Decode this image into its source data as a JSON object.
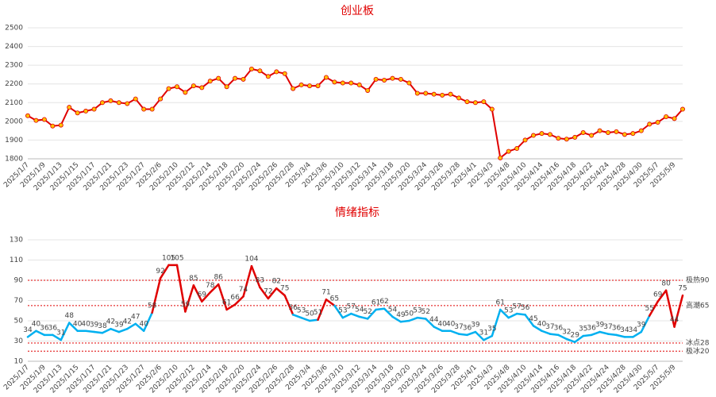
{
  "chart_data": [
    {
      "type": "line",
      "title": "创业板",
      "categories": [
        "2025/1/7",
        null,
        "2025/1/9",
        null,
        "2025/1/13",
        null,
        "2025/1/15",
        null,
        "2025/1/17",
        null,
        "2025/1/21",
        null,
        "2025/1/23",
        null,
        "2025/1/27",
        null,
        "2025/2/6",
        null,
        "2025/2/10",
        null,
        "2025/2/12",
        null,
        "2025/2/14",
        null,
        "2025/2/18",
        null,
        "2025/2/20",
        null,
        "2025/2/24",
        null,
        "2025/2/26",
        null,
        "2025/2/28",
        null,
        "2025/3/4",
        null,
        "2025/3/6",
        null,
        "2025/3/10",
        null,
        "2025/3/12",
        null,
        "2025/3/14",
        null,
        "2025/3/18",
        null,
        "2025/3/20",
        null,
        "2025/3/24",
        null,
        "2025/3/26",
        null,
        "2025/3/28",
        null,
        "2025/4/1",
        null,
        "2025/4/3",
        null,
        "2025/4/8",
        null,
        "2025/4/10",
        null,
        "2025/4/14",
        null,
        "2025/4/16",
        null,
        "2025/4/18",
        null,
        "2025/4/22",
        null,
        "2025/4/24",
        null,
        "2025/4/28",
        null,
        "2025/4/30",
        null,
        "2025/5/7",
        null,
        "2025/5/9",
        null
      ],
      "values": [
        2030,
        2005,
        2010,
        1975,
        1980,
        2075,
        2045,
        2055,
        2065,
        2100,
        2110,
        2100,
        2095,
        2120,
        2065,
        2065,
        2120,
        2175,
        2185,
        2155,
        2190,
        2180,
        2215,
        2230,
        2185,
        2230,
        2225,
        2280,
        2270,
        2240,
        2265,
        2255,
        2175,
        2195,
        2190,
        2190,
        2235,
        2210,
        2205,
        2205,
        2195,
        2165,
        2225,
        2220,
        2230,
        2225,
        2205,
        2150,
        2150,
        2145,
        2140,
        2145,
        2125,
        2105,
        2100,
        2105,
        2065,
        1805,
        1840,
        1855,
        1900,
        1925,
        1935,
        1930,
        1910,
        1905,
        1915,
        1940,
        1925,
        1950,
        1940,
        1945,
        1930,
        1935,
        1950,
        1985,
        1995,
        2025,
        2015,
        2065
      ],
      "color": "#e00000",
      "marker_color": "#ffc000",
      "ylim": [
        1800,
        2500
      ],
      "yticks": [
        1800,
        1900,
        2000,
        2100,
        2200,
        2300,
        2400,
        2500
      ],
      "grid": true
    },
    {
      "type": "line",
      "title": "情绪指标",
      "categories": [
        "2025/1/7",
        null,
        "2025/1/9",
        null,
        "2025/1/13",
        null,
        "2025/1/15",
        null,
        "2025/1/17",
        null,
        "2025/1/21",
        null,
        "2025/1/23",
        null,
        "2025/1/27",
        null,
        "2025/2/6",
        null,
        "2025/2/10",
        null,
        "2025/2/12",
        null,
        "2025/2/14",
        null,
        "2025/2/18",
        null,
        "2025/2/20",
        null,
        "2025/2/24",
        null,
        "2025/2/26",
        null,
        "2025/2/28",
        null,
        "2025/3/4",
        null,
        "2025/3/6",
        null,
        "2025/3/10",
        null,
        "2025/3/12",
        null,
        "2025/3/14",
        null,
        "2025/3/18",
        null,
        "2025/3/20",
        null,
        "2025/3/24",
        null,
        "2025/3/26",
        null,
        "2025/3/28",
        null,
        "2025/4/1",
        null,
        "2025/4/3",
        null,
        "2025/4/8",
        null,
        "2025/4/10",
        null,
        "2025/4/14",
        null,
        "2025/4/16",
        null,
        "2025/4/18",
        null,
        "2025/4/22",
        null,
        "2025/4/24",
        null,
        "2025/4/28",
        null,
        "2025/4/30",
        null,
        "2025/5/7",
        null,
        "2025/5/9",
        null
      ],
      "values": [
        34,
        40,
        36,
        36,
        31,
        48,
        40,
        40,
        39,
        38,
        42,
        39,
        42,
        47,
        40,
        58,
        92,
        105,
        105,
        59,
        85,
        69,
        78,
        86,
        61,
        66,
        74,
        104,
        83,
        72,
        82,
        75,
        56,
        53,
        50,
        51,
        71,
        65,
        53,
        57,
        54,
        52,
        61,
        62,
        54,
        49,
        50,
        53,
        52,
        44,
        40,
        40,
        37,
        36,
        39,
        31,
        35,
        61,
        53,
        57,
        56,
        45,
        40,
        37,
        36,
        32,
        29,
        35,
        36,
        39,
        37,
        36,
        34,
        34,
        39,
        55,
        69,
        80,
        44,
        75
      ],
      "color": "#00b0f0",
      "hot_color": "#e00000",
      "ylim": [
        10,
        130
      ],
      "yticks": [
        10,
        30,
        50,
        70,
        90,
        110,
        130
      ],
      "grid": true,
      "hlines": [
        {
          "value": 90,
          "label": "极热90"
        },
        {
          "value": 65,
          "label": "高潮65"
        },
        {
          "value": 28,
          "label": "冰点28"
        },
        {
          "value": 20,
          "label": "极冰20"
        }
      ],
      "hline_color": "#e00000",
      "hot_threshold": 65
    }
  ]
}
